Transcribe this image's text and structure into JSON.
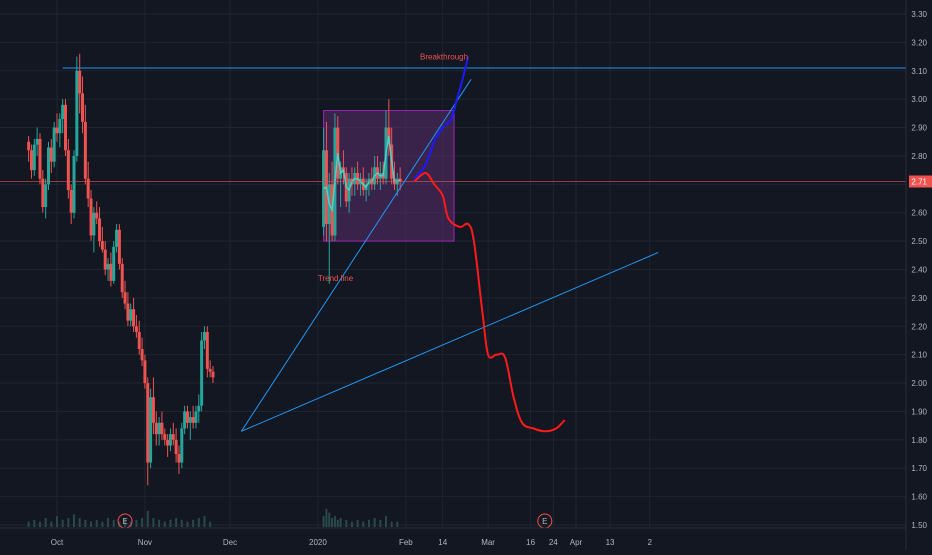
{
  "chart_data": {
    "type": "candlestick",
    "colors": {
      "background": "#131722",
      "grid": "#1f2430",
      "axis_text": "#b2b5be",
      "up": "#26a69a",
      "down": "#ef5350",
      "trendline": "#2196f3",
      "horizontal_line": "#2196f3",
      "price_line": "#ef5350",
      "price_label_bg": "#ef5350",
      "projection_red": "#ff1a1a",
      "projection_blue": "#1a1aff",
      "box_fill": "#5a2d6e",
      "box_stroke": "#9c27b0",
      "ma_line": "#4dd0c8",
      "earnings_circle": "#ef5350"
    },
    "y_axis": {
      "min": 1.5,
      "max": 3.3,
      "ticks": [
        "3.30",
        "3.20",
        "3.10",
        "3.00",
        "2.90",
        "2.80",
        "2.70",
        "2.60",
        "2.50",
        "2.40",
        "2.30",
        "2.20",
        "2.10",
        "2.00",
        "1.90",
        "1.80",
        "1.70",
        "1.60",
        "1.50"
      ]
    },
    "x_axis": {
      "ticks": [
        {
          "label": "Oct",
          "day": 0
        },
        {
          "label": "Nov",
          "day": 31
        },
        {
          "label": "Dec",
          "day": 61
        },
        {
          "label": "2020",
          "day": 92
        },
        {
          "label": "Feb",
          "day": 123
        },
        {
          "label": "14",
          "day": 136
        },
        {
          "label": "Mar",
          "day": 152
        },
        {
          "label": "16",
          "day": 167
        },
        {
          "label": "Apr",
          "day": 183
        },
        {
          "label": "24",
          "day": 175
        },
        {
          "label": "13",
          "day": 195
        },
        {
          "label": "2",
          "day": 209
        }
      ]
    },
    "current_price": {
      "value": 2.71,
      "label": "2.71"
    },
    "horizontal_line": {
      "price": 3.11
    },
    "annotations": [
      {
        "text": "Breakthrough",
        "day": 128,
        "price": 3.14
      },
      {
        "text": "Trend line",
        "day": 92,
        "price": 2.36
      }
    ],
    "earnings_markers": [
      {
        "label": "E",
        "day": 24
      },
      {
        "label": "E",
        "day": 172
      }
    ],
    "trendlines": [
      {
        "from": {
          "day": 65,
          "price": 1.83
        },
        "to": {
          "day": 146,
          "price": 3.07
        }
      },
      {
        "from": {
          "day": 65,
          "price": 1.83
        },
        "to": {
          "day": 212,
          "price": 2.46
        }
      }
    ],
    "consolidation_box": {
      "day_start": 94,
      "day_end": 140,
      "price_low": 2.5,
      "price_high": 2.96
    },
    "projection_red": [
      [
        126,
        2.71
      ],
      [
        130,
        2.74
      ],
      [
        133,
        2.7
      ],
      [
        136,
        2.66
      ],
      [
        138,
        2.58
      ],
      [
        142,
        2.55
      ],
      [
        145,
        2.56
      ],
      [
        147,
        2.5
      ],
      [
        150,
        2.25
      ],
      [
        152,
        2.1
      ],
      [
        155,
        2.1
      ],
      [
        158,
        2.09
      ],
      [
        161,
        1.95
      ],
      [
        164,
        1.86
      ],
      [
        168,
        1.84
      ],
      [
        172,
        1.83
      ],
      [
        176,
        1.84
      ],
      [
        179,
        1.87
      ]
    ],
    "projection_blue": [
      [
        126,
        2.72
      ],
      [
        130,
        2.77
      ],
      [
        133,
        2.85
      ],
      [
        136,
        2.9
      ],
      [
        139,
        2.93
      ],
      [
        141,
        3.0
      ],
      [
        143,
        3.07
      ],
      [
        145,
        3.15
      ]
    ],
    "candles": [
      [
        -10,
        2.85,
        2.87,
        2.78,
        2.82
      ],
      [
        -9,
        2.82,
        2.84,
        2.72,
        2.75
      ],
      [
        -8,
        2.75,
        2.86,
        2.73,
        2.84
      ],
      [
        -7,
        2.84,
        2.9,
        2.8,
        2.86
      ],
      [
        -6,
        2.86,
        2.88,
        2.7,
        2.72
      ],
      [
        -5,
        2.72,
        2.75,
        2.6,
        2.62
      ],
      [
        -4,
        2.62,
        2.72,
        2.58,
        2.7
      ],
      [
        -3,
        2.7,
        2.85,
        2.68,
        2.83
      ],
      [
        -2,
        2.83,
        2.86,
        2.74,
        2.78
      ],
      [
        -1,
        2.78,
        2.92,
        2.76,
        2.9
      ],
      [
        0,
        2.9,
        2.95,
        2.85,
        2.88
      ],
      [
        1,
        2.88,
        2.95,
        2.83,
        2.93
      ],
      [
        2,
        2.93,
        3.0,
        2.88,
        2.98
      ],
      [
        3,
        2.98,
        3.0,
        2.8,
        2.82
      ],
      [
        4,
        2.82,
        2.86,
        2.65,
        2.68
      ],
      [
        5,
        2.68,
        2.7,
        2.56,
        2.6
      ],
      [
        6,
        2.6,
        2.82,
        2.58,
        2.8
      ],
      [
        7,
        2.8,
        3.15,
        2.78,
        3.1
      ],
      [
        8,
        3.1,
        3.16,
        2.95,
        3.02
      ],
      [
        9,
        3.02,
        3.08,
        2.88,
        2.92
      ],
      [
        10,
        2.92,
        2.98,
        2.7,
        2.72
      ],
      [
        11,
        2.72,
        2.78,
        2.62,
        2.65
      ],
      [
        12,
        2.65,
        2.68,
        2.5,
        2.52
      ],
      [
        13,
        2.52,
        2.62,
        2.46,
        2.6
      ],
      [
        14,
        2.6,
        2.64,
        2.56,
        2.58
      ],
      [
        15,
        2.58,
        2.62,
        2.48,
        2.5
      ],
      [
        16,
        2.5,
        2.55,
        2.46,
        2.47
      ],
      [
        17,
        2.47,
        2.5,
        2.38,
        2.4
      ],
      [
        18,
        2.4,
        2.44,
        2.36,
        2.42
      ],
      [
        19,
        2.42,
        2.46,
        2.34,
        2.36
      ],
      [
        20,
        2.36,
        2.5,
        2.35,
        2.48
      ],
      [
        21,
        2.48,
        2.56,
        2.46,
        2.54
      ],
      [
        22,
        2.54,
        2.56,
        2.4,
        2.42
      ],
      [
        23,
        2.42,
        2.44,
        2.3,
        2.32
      ],
      [
        24,
        2.32,
        2.36,
        2.26,
        2.28
      ],
      [
        25,
        2.28,
        2.32,
        2.2,
        2.22
      ],
      [
        26,
        2.22,
        2.28,
        2.2,
        2.26
      ],
      [
        27,
        2.26,
        2.3,
        2.18,
        2.2
      ],
      [
        28,
        2.2,
        2.24,
        2.16,
        2.18
      ],
      [
        29,
        2.18,
        2.22,
        2.1,
        2.12
      ],
      [
        30,
        2.12,
        2.16,
        2.06,
        2.08
      ],
      [
        31,
        2.08,
        2.1,
        1.98,
        2.0
      ],
      [
        32,
        2.0,
        2.02,
        1.64,
        1.72
      ],
      [
        33,
        1.72,
        1.98,
        1.7,
        1.95
      ],
      [
        34,
        1.95,
        2.02,
        1.82,
        1.86
      ],
      [
        35,
        1.86,
        1.9,
        1.78,
        1.82
      ],
      [
        36,
        1.82,
        1.88,
        1.78,
        1.86
      ],
      [
        37,
        1.86,
        1.9,
        1.8,
        1.82
      ],
      [
        38,
        1.82,
        1.84,
        1.78,
        1.8
      ],
      [
        39,
        1.8,
        1.82,
        1.74,
        1.78
      ],
      [
        40,
        1.78,
        1.84,
        1.76,
        1.82
      ],
      [
        41,
        1.82,
        1.86,
        1.78,
        1.8
      ],
      [
        42,
        1.8,
        1.84,
        1.72,
        1.75
      ],
      [
        43,
        1.75,
        1.78,
        1.68,
        1.72
      ],
      [
        44,
        1.72,
        1.86,
        1.7,
        1.84
      ],
      [
        45,
        1.84,
        1.92,
        1.82,
        1.9
      ],
      [
        46,
        1.9,
        1.92,
        1.84,
        1.86
      ],
      [
        47,
        1.86,
        1.9,
        1.8,
        1.88
      ],
      [
        48,
        1.88,
        1.92,
        1.84,
        1.86
      ],
      [
        49,
        1.86,
        1.92,
        1.84,
        1.9
      ],
      [
        50,
        1.9,
        1.96,
        1.86,
        1.92
      ],
      [
        51,
        1.92,
        2.18,
        1.9,
        2.15
      ],
      [
        52,
        2.15,
        2.2,
        2.12,
        2.18
      ],
      [
        53,
        2.18,
        2.2,
        2.02,
        2.05
      ],
      [
        54,
        2.05,
        2.08,
        2.02,
        2.04
      ],
      [
        55,
        2.04,
        2.06,
        2.0,
        2.02
      ],
      [
        94,
        2.55,
        2.9,
        2.52,
        2.82
      ],
      [
        95,
        2.82,
        2.92,
        2.5,
        2.56
      ],
      [
        96,
        2.56,
        2.74,
        2.35,
        2.7
      ],
      [
        97,
        2.7,
        2.78,
        2.5,
        2.52
      ],
      [
        98,
        2.52,
        2.95,
        2.5,
        2.9
      ],
      [
        99,
        2.9,
        2.94,
        2.7,
        2.72
      ],
      [
        100,
        2.72,
        2.78,
        2.62,
        2.76
      ],
      [
        101,
        2.76,
        2.82,
        2.7,
        2.74
      ],
      [
        102,
        2.74,
        2.76,
        2.62,
        2.64
      ],
      [
        103,
        2.64,
        2.74,
        2.6,
        2.72
      ],
      [
        104,
        2.72,
        2.76,
        2.66,
        2.7
      ],
      [
        105,
        2.7,
        2.76,
        2.66,
        2.74
      ],
      [
        106,
        2.74,
        2.78,
        2.68,
        2.7
      ],
      [
        107,
        2.7,
        2.74,
        2.66,
        2.72
      ],
      [
        108,
        2.72,
        2.76,
        2.66,
        2.68
      ],
      [
        109,
        2.68,
        2.72,
        2.64,
        2.7
      ],
      [
        110,
        2.7,
        2.74,
        2.66,
        2.72
      ],
      [
        111,
        2.72,
        2.76,
        2.68,
        2.7
      ],
      [
        112,
        2.7,
        2.8,
        2.68,
        2.76
      ],
      [
        113,
        2.76,
        2.8,
        2.7,
        2.72
      ],
      [
        114,
        2.72,
        2.78,
        2.68,
        2.74
      ],
      [
        115,
        2.74,
        2.78,
        2.7,
        2.72
      ],
      [
        116,
        2.72,
        2.96,
        2.7,
        2.9
      ],
      [
        117,
        2.9,
        3.0,
        2.8,
        2.84
      ],
      [
        118,
        2.84,
        2.9,
        2.7,
        2.72
      ],
      [
        119,
        2.72,
        2.78,
        2.68,
        2.7
      ],
      [
        120,
        2.7,
        2.74,
        2.66,
        2.72
      ],
      [
        121,
        2.72,
        2.76,
        2.68,
        2.71
      ]
    ],
    "volume_bars": [
      [
        -10,
        0.3
      ],
      [
        -8,
        0.4
      ],
      [
        -6,
        0.3
      ],
      [
        -4,
        0.5
      ],
      [
        -2,
        0.3
      ],
      [
        0,
        0.6
      ],
      [
        2,
        0.4
      ],
      [
        4,
        0.5
      ],
      [
        6,
        0.7
      ],
      [
        8,
        0.5
      ],
      [
        10,
        0.4
      ],
      [
        12,
        0.3
      ],
      [
        14,
        0.4
      ],
      [
        16,
        0.3
      ],
      [
        18,
        0.5
      ],
      [
        20,
        0.4
      ],
      [
        22,
        0.3
      ],
      [
        24,
        0.5
      ],
      [
        26,
        0.3
      ],
      [
        28,
        0.4
      ],
      [
        30,
        0.5
      ],
      [
        32,
        0.9
      ],
      [
        34,
        0.5
      ],
      [
        36,
        0.4
      ],
      [
        38,
        0.3
      ],
      [
        40,
        0.4
      ],
      [
        42,
        0.5
      ],
      [
        44,
        0.4
      ],
      [
        46,
        0.3
      ],
      [
        48,
        0.4
      ],
      [
        50,
        0.5
      ],
      [
        52,
        0.6
      ],
      [
        54,
        0.3
      ],
      [
        94,
        0.6
      ],
      [
        95,
        1.0
      ],
      [
        96,
        0.8
      ],
      [
        97,
        0.5
      ],
      [
        98,
        0.6
      ],
      [
        99,
        0.4
      ],
      [
        100,
        0.5
      ],
      [
        102,
        0.4
      ],
      [
        104,
        0.3
      ],
      [
        106,
        0.4
      ],
      [
        108,
        0.3
      ],
      [
        110,
        0.4
      ],
      [
        112,
        0.5
      ],
      [
        114,
        0.4
      ],
      [
        116,
        0.6
      ],
      [
        118,
        0.3
      ],
      [
        120,
        0.3
      ]
    ],
    "grid": true
  }
}
